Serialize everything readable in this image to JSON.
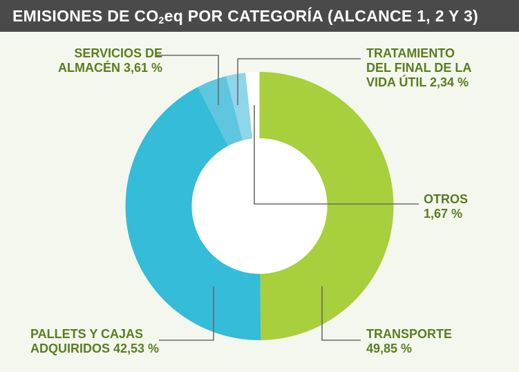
{
  "title": {
    "prefix": "EMISIONES DE CO",
    "subscript": "2",
    "suffix": "eq POR CATEGORÍA (ALCANCE 1, 2 Y 3)"
  },
  "colors": {
    "header_bg": "#4a4a4a",
    "background": "#f4f7ee",
    "label_text": "#5a7d1e",
    "leader_line": "#6b6b6b"
  },
  "chart_data": {
    "type": "pie",
    "donut": true,
    "slices": [
      {
        "value": 49.85,
        "color": "#a8cf3c",
        "label_lines": [
          "TRANSPORTE",
          "49,85 %"
        ]
      },
      {
        "value": 42.53,
        "color": "#35bcd9",
        "label_lines": [
          "PALLETS Y CAJAS",
          "ADQUIRIDOS 42,53 %"
        ]
      },
      {
        "value": 3.61,
        "color": "#5fc6df",
        "label_lines": [
          "SERVICIOS DE",
          "ALMACÉN 3,61 %"
        ]
      },
      {
        "value": 2.34,
        "color": "#8fd6ea",
        "label_lines": [
          "TRATAMIENTO",
          "DEL FINAL DE LA",
          "VIDA ÚTIL 2,34 %"
        ]
      },
      {
        "value": 1.67,
        "color": "#ffffff",
        "label_lines": [
          "OTROS",
          "1,67 %"
        ]
      }
    ]
  }
}
